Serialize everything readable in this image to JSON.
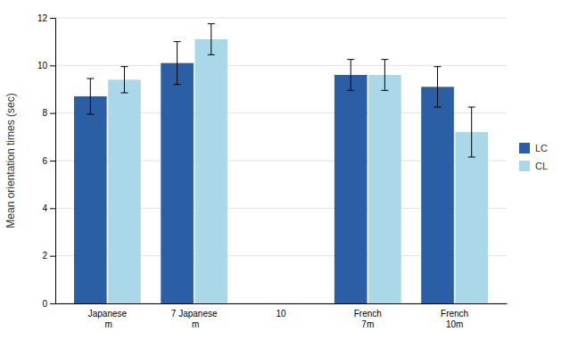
{
  "chart_data": {
    "type": "bar",
    "ylabel": "Mean orientation times (sec)",
    "categories": [
      "Japanese\n m",
      "7 Japanese\n m",
      "10",
      "French\n7m",
      "French\n10m"
    ],
    "series": [
      {
        "name": "LC",
        "color": "#2B5FA5",
        "values": [
          8.7,
          10.1,
          null,
          9.6,
          9.1
        ],
        "errors": [
          0.75,
          0.9,
          null,
          0.65,
          0.85
        ]
      },
      {
        "name": "CL",
        "color": "#AAD8E8",
        "values": [
          9.4,
          11.1,
          null,
          9.6,
          7.2
        ],
        "errors": [
          0.55,
          0.65,
          null,
          0.65,
          1.05
        ]
      }
    ],
    "ylim": [
      0,
      12
    ],
    "yticks": [
      0,
      2,
      4,
      6,
      8,
      10,
      12
    ],
    "grid": true,
    "legend": "right"
  }
}
